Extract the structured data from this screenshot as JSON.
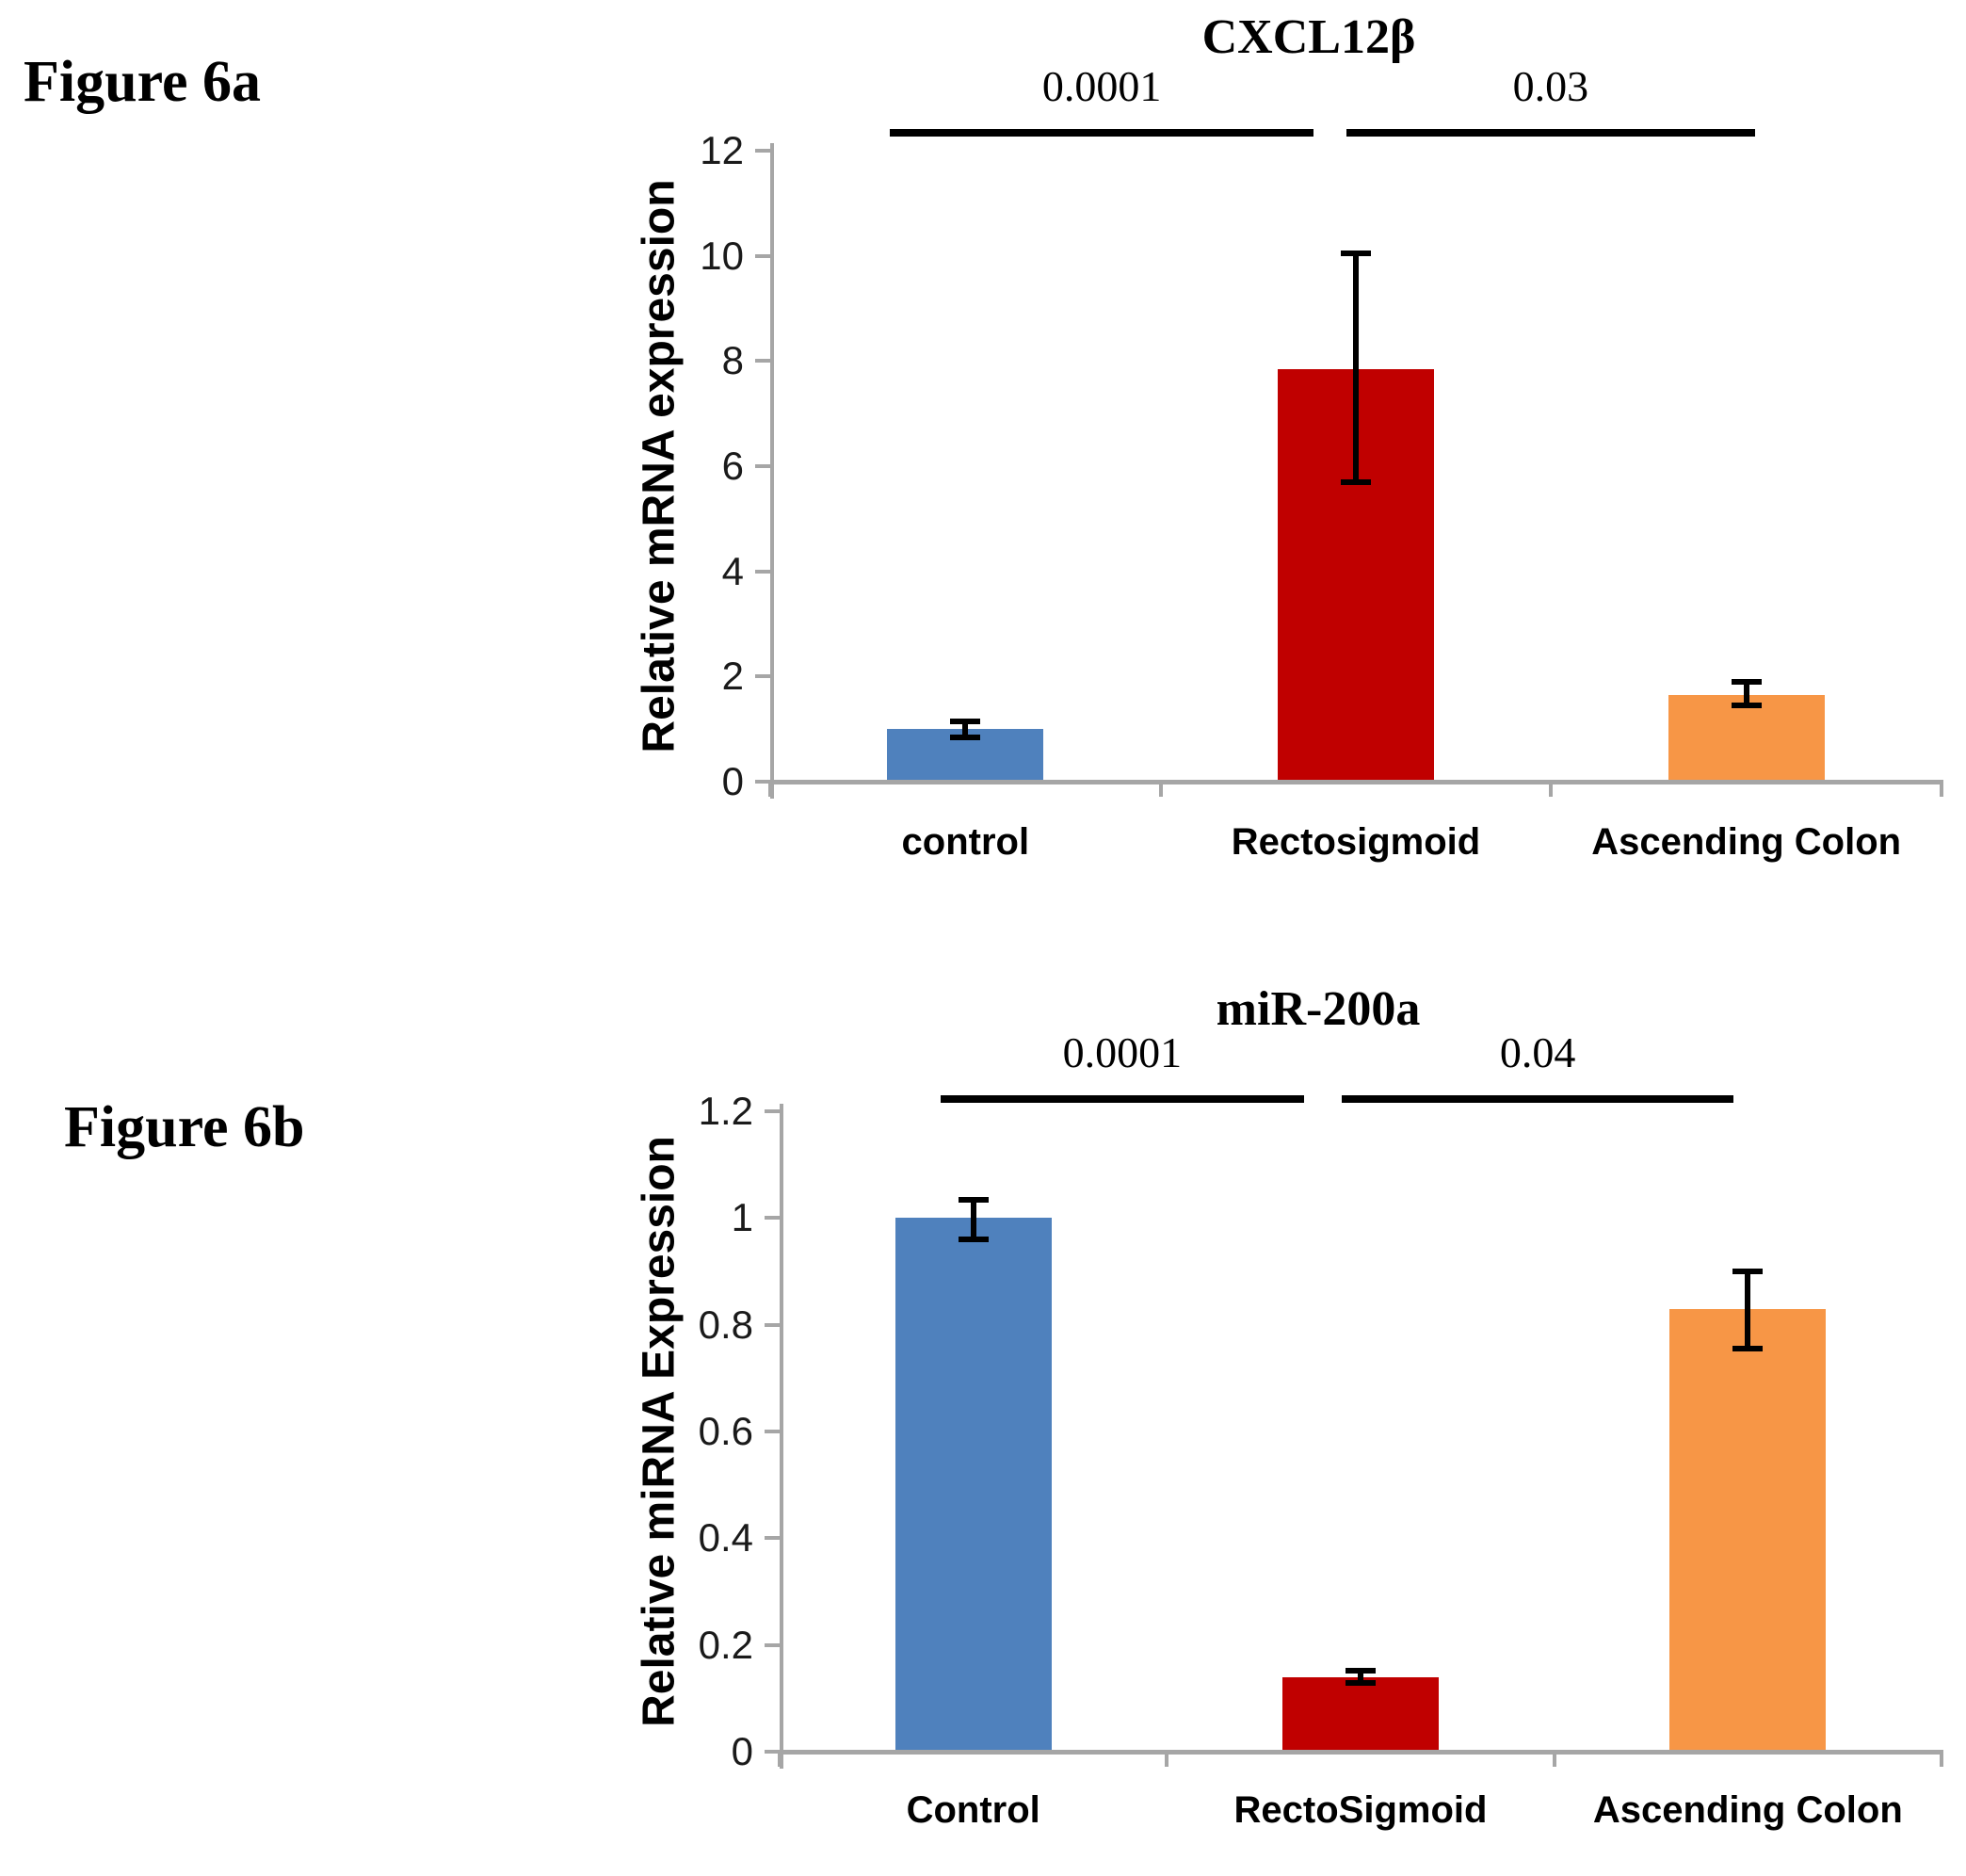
{
  "page": {
    "background": "#ffffff"
  },
  "colors": {
    "bar_blue": "#4F81BD",
    "bar_red": "#C00000",
    "bar_orange": "#F79646",
    "axis_gray": "#A6A6A6",
    "error_bar_black": "#000000",
    "text_black": "#000000"
  },
  "chart_data": [
    {
      "type": "bar",
      "figure_label": "Figure 6a",
      "title": "CXCL12β",
      "ylabel": "Relative mRNA expression",
      "xlabel": "",
      "categories": [
        "control",
        "Rectosigmoid",
        "Ascending Colon"
      ],
      "values": [
        1.0,
        7.85,
        1.65
      ],
      "errors_plus": [
        0.15,
        2.2,
        0.25
      ],
      "errors_minus": [
        0.15,
        2.15,
        0.2
      ],
      "bar_colors": [
        "#4F81BD",
        "#C00000",
        "#F79646"
      ],
      "ylim": [
        0,
        12
      ],
      "ytick_values": [
        0,
        2,
        4,
        6,
        8,
        10,
        12
      ],
      "ytick_labels": [
        "0",
        "2",
        "4",
        "6",
        "8",
        "10",
        "12"
      ],
      "grid": false,
      "legend": null,
      "significance": [
        {
          "label": "0.0001",
          "from": 0,
          "to": 1
        },
        {
          "label": "0.03",
          "from": 1,
          "to": 2
        }
      ]
    },
    {
      "type": "bar",
      "figure_label": "Figure 6b",
      "title": "miR-200a",
      "ylabel": "Relative miRNA Expression",
      "xlabel": "",
      "categories": [
        "Control",
        "RectoSigmoid",
        "Ascending Colon"
      ],
      "values": [
        1.0,
        0.14,
        0.83
      ],
      "errors_plus": [
        0.035,
        0.012,
        0.07
      ],
      "errors_minus": [
        0.04,
        0.012,
        0.075
      ],
      "bar_colors": [
        "#4F81BD",
        "#C00000",
        "#F79646"
      ],
      "ylim": [
        0,
        1.2
      ],
      "ytick_values": [
        0,
        0.2,
        0.4,
        0.6,
        0.8,
        1,
        1.2
      ],
      "ytick_labels": [
        "0",
        "0.2",
        "0.4",
        "0.6",
        "0.8",
        "1",
        "1.2"
      ],
      "grid": false,
      "legend": null,
      "significance": [
        {
          "label": "0.0001",
          "from": 0,
          "to": 1
        },
        {
          "label": "0.04",
          "from": 1,
          "to": 2
        }
      ]
    }
  ]
}
